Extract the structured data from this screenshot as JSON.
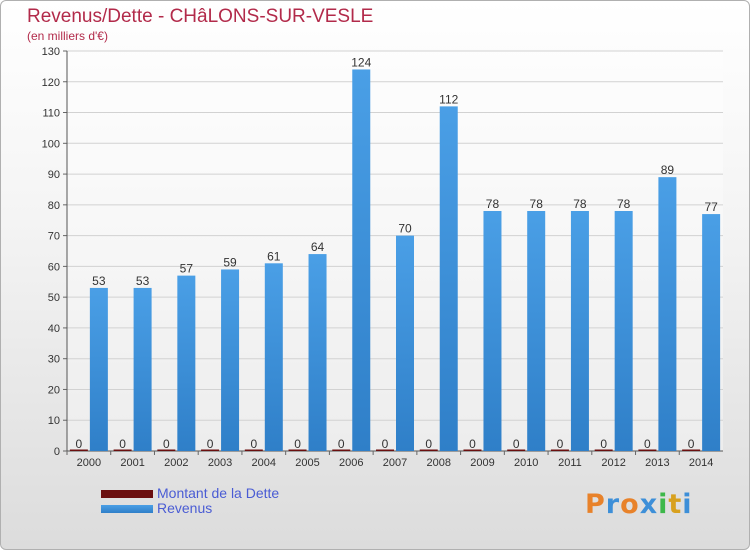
{
  "header": {
    "title": "Revenus/Dette - CHâLONS-SUR-VESLE",
    "subtitle": "(en milliers d'€)"
  },
  "colors": {
    "revenus": "#4a9fe6",
    "revenus_dark": "#2f7fc8",
    "dette": "#6b0f0f",
    "grid": "#d2d2d2",
    "title": "#b22a4a",
    "legend_text": "#4a5cd4"
  },
  "chart_data": {
    "type": "bar",
    "title": "Revenus/Dette - CHâLONS-SUR-VESLE",
    "ylabel": "(en milliers d'€)",
    "xlabel": "",
    "ylim": [
      0,
      130
    ],
    "yticks": [
      0,
      10,
      20,
      30,
      40,
      50,
      60,
      70,
      80,
      90,
      100,
      110,
      120,
      130
    ],
    "grid": true,
    "categories": [
      "2000",
      "2001",
      "2002",
      "2003",
      "2004",
      "2005",
      "2006",
      "2007",
      "2008",
      "2009",
      "2010",
      "2011",
      "2012",
      "2013",
      "2014"
    ],
    "series": [
      {
        "name": "Montant de la Dette",
        "values": [
          0,
          0,
          0,
          0,
          0,
          0,
          0,
          0,
          0,
          0,
          0,
          0,
          0,
          0,
          0
        ]
      },
      {
        "name": "Revenus",
        "values": [
          53,
          53,
          57,
          59,
          61,
          64,
          124,
          70,
          112,
          78,
          78,
          78,
          78,
          89,
          77
        ]
      }
    ]
  },
  "legend": {
    "items": [
      {
        "label": "Montant de la Dette",
        "color": "#6b0f0f"
      },
      {
        "label": "Revenus",
        "color": "#4a9fe6"
      }
    ]
  },
  "logo": {
    "text": "Proxiti",
    "letters": [
      "P",
      "r",
      "o",
      "x",
      "i",
      "t",
      "i"
    ],
    "letter_colors": [
      "#e8822a",
      "#3d8fd8",
      "#e8822a",
      "#3d8fd8",
      "#3db84a",
      "#d8a11e",
      "#3d8fd8"
    ]
  }
}
